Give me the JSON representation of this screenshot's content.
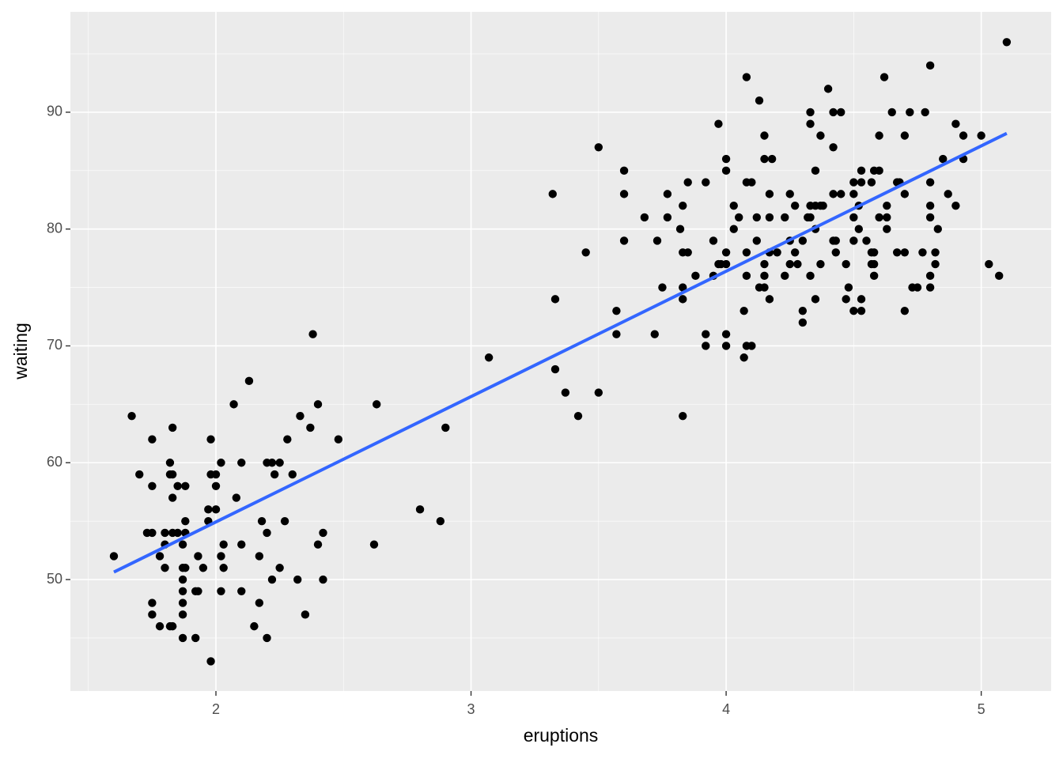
{
  "chart_data": {
    "type": "scatter",
    "x_label": "eruptions",
    "y_label": "waiting",
    "xlim": [
      1.4295,
      5.274
    ],
    "ylim": [
      40.46,
      98.59
    ],
    "xticks": [
      2,
      3,
      4,
      5
    ],
    "yticks": [
      50,
      60,
      70,
      80,
      90
    ],
    "xminor": [
      1.5,
      2.5,
      3.5,
      4.5
    ],
    "yminor": [
      45,
      55,
      65,
      75,
      85,
      95
    ],
    "grid": true,
    "color": "#000000",
    "x": [
      1.6,
      1.67,
      1.7,
      1.73,
      1.75,
      1.75,
      1.75,
      1.75,
      1.75,
      1.78,
      1.78,
      1.8,
      1.8,
      1.8,
      1.82,
      1.82,
      1.82,
      1.83,
      1.83,
      1.83,
      1.83,
      1.83,
      1.85,
      1.85,
      1.87,
      1.87,
      1.87,
      1.87,
      1.87,
      1.87,
      1.87,
      1.88,
      1.88,
      1.88,
      1.88,
      1.92,
      1.93,
      1.92,
      1.93,
      1.95,
      1.97,
      1.97,
      1.98,
      1.98,
      2.0,
      1.98,
      2.0,
      2.0,
      2.02,
      2.02,
      2.02,
      2.03,
      2.03,
      2.07,
      2.08,
      2.1,
      2.1,
      2.1,
      2.13,
      2.15,
      2.17,
      2.17,
      2.18,
      2.2,
      2.22,
      2.25,
      2.2,
      2.2,
      2.22,
      2.23,
      2.25,
      2.27,
      2.28,
      2.3,
      2.32,
      2.33,
      2.35,
      2.37,
      2.38,
      2.4,
      2.4,
      2.42,
      2.42,
      2.48,
      2.62,
      2.63,
      2.8,
      2.88,
      2.9,
      3.07,
      3.32,
      3.33,
      3.33,
      3.37,
      3.42,
      3.45,
      3.5,
      3.5,
      3.57,
      3.57,
      3.6,
      3.6,
      3.6,
      3.68,
      3.72,
      3.73,
      3.75,
      3.77,
      3.77,
      3.82,
      3.83,
      3.83,
      3.85,
      3.83,
      3.83,
      3.83,
      3.85,
      3.88,
      3.92,
      3.92,
      3.92,
      3.95,
      3.95,
      3.97,
      3.97,
      3.98,
      4.0,
      4.0,
      4.0,
      4.0,
      4.0,
      4.0,
      4.03,
      4.03,
      4.05,
      4.07,
      4.07,
      4.08,
      4.08,
      4.1,
      4.08,
      4.08,
      4.08,
      4.1,
      4.12,
      4.12,
      4.13,
      4.13,
      4.15,
      4.15,
      4.15,
      4.18,
      4.15,
      4.15,
      4.17,
      4.17,
      4.17,
      4.2,
      4.17,
      4.23,
      4.23,
      4.25,
      4.25,
      4.25,
      4.27,
      4.27,
      4.28,
      4.3,
      4.3,
      4.3,
      4.32,
      4.33,
      4.33,
      4.33,
      4.33,
      4.35,
      4.37,
      4.38,
      4.33,
      4.35,
      4.35,
      4.35,
      4.37,
      4.37,
      4.4,
      4.42,
      4.45,
      4.42,
      4.42,
      4.45,
      4.42,
      4.43,
      4.43,
      4.47,
      4.47,
      4.48,
      4.5,
      4.53,
      4.57,
      4.5,
      4.5,
      4.5,
      4.5,
      4.53,
      4.52,
      4.52,
      4.53,
      4.53,
      4.55,
      4.57,
      4.58,
      4.57,
      4.58,
      4.58,
      4.6,
      4.58,
      4.6,
      4.6,
      4.62,
      4.63,
      4.63,
      4.63,
      4.65,
      4.67,
      4.68,
      4.67,
      4.7,
      4.7,
      4.7,
      4.7,
      4.72,
      4.73,
      4.75,
      4.77,
      4.78,
      4.8,
      4.8,
      4.8,
      4.8,
      4.8,
      4.8,
      4.82,
      4.82,
      4.83,
      4.85,
      4.87,
      4.9,
      4.9,
      4.93,
      4.93,
      5.0,
      5.03,
      5.07,
      5.1
    ],
    "values": [
      52,
      64,
      59,
      54,
      54,
      62,
      58,
      48,
      47,
      52,
      46,
      53,
      54,
      51,
      60,
      59,
      46,
      46,
      63,
      57,
      59,
      54,
      58,
      54,
      53,
      51,
      50,
      49,
      48,
      47,
      45,
      58,
      55,
      54,
      51,
      49,
      49,
      45,
      52,
      51,
      56,
      55,
      62,
      59,
      59,
      43,
      56,
      58,
      60,
      52,
      49,
      53,
      51,
      65,
      57,
      60,
      53,
      49,
      67,
      46,
      48,
      52,
      55,
      60,
      60,
      60,
      54,
      45,
      50,
      59,
      51,
      55,
      62,
      59,
      50,
      64,
      47,
      63,
      71,
      65,
      53,
      54,
      50,
      62,
      53,
      65,
      56,
      55,
      63,
      69,
      83,
      74,
      68,
      66,
      64,
      78,
      87,
      66,
      73,
      71,
      85,
      83,
      79,
      81,
      71,
      79,
      75,
      83,
      81,
      80,
      82,
      78,
      78,
      75,
      74,
      64,
      84,
      76,
      84,
      71,
      70,
      79,
      76,
      89,
      77,
      77,
      86,
      85,
      78,
      77,
      71,
      70,
      82,
      80,
      81,
      73,
      69,
      93,
      84,
      84,
      78,
      76,
      70,
      70,
      79,
      81,
      91,
      75,
      75,
      88,
      86,
      86,
      77,
      76,
      83,
      81,
      78,
      78,
      74,
      81,
      76,
      83,
      79,
      77,
      82,
      78,
      77,
      79,
      73,
      72,
      81,
      81,
      90,
      89,
      82,
      82,
      82,
      82,
      76,
      85,
      80,
      74,
      88,
      77,
      92,
      90,
      90,
      87,
      83,
      83,
      79,
      79,
      78,
      77,
      74,
      75,
      84,
      84,
      84,
      83,
      81,
      79,
      73,
      73,
      82,
      80,
      85,
      74,
      79,
      78,
      78,
      77,
      77,
      85,
      85,
      76,
      88,
      81,
      93,
      82,
      81,
      80,
      90,
      84,
      84,
      78,
      78,
      83,
      88,
      73,
      90,
      75,
      75,
      78,
      90,
      94,
      84,
      82,
      81,
      76,
      75,
      78,
      77,
      80,
      86,
      83,
      89,
      82,
      88,
      86,
      88,
      77,
      76,
      96
    ],
    "fit": {
      "x": [
        1.6,
        5.1
      ],
      "values": [
        50.64,
        88.19
      ],
      "color": "#3366ff"
    }
  }
}
